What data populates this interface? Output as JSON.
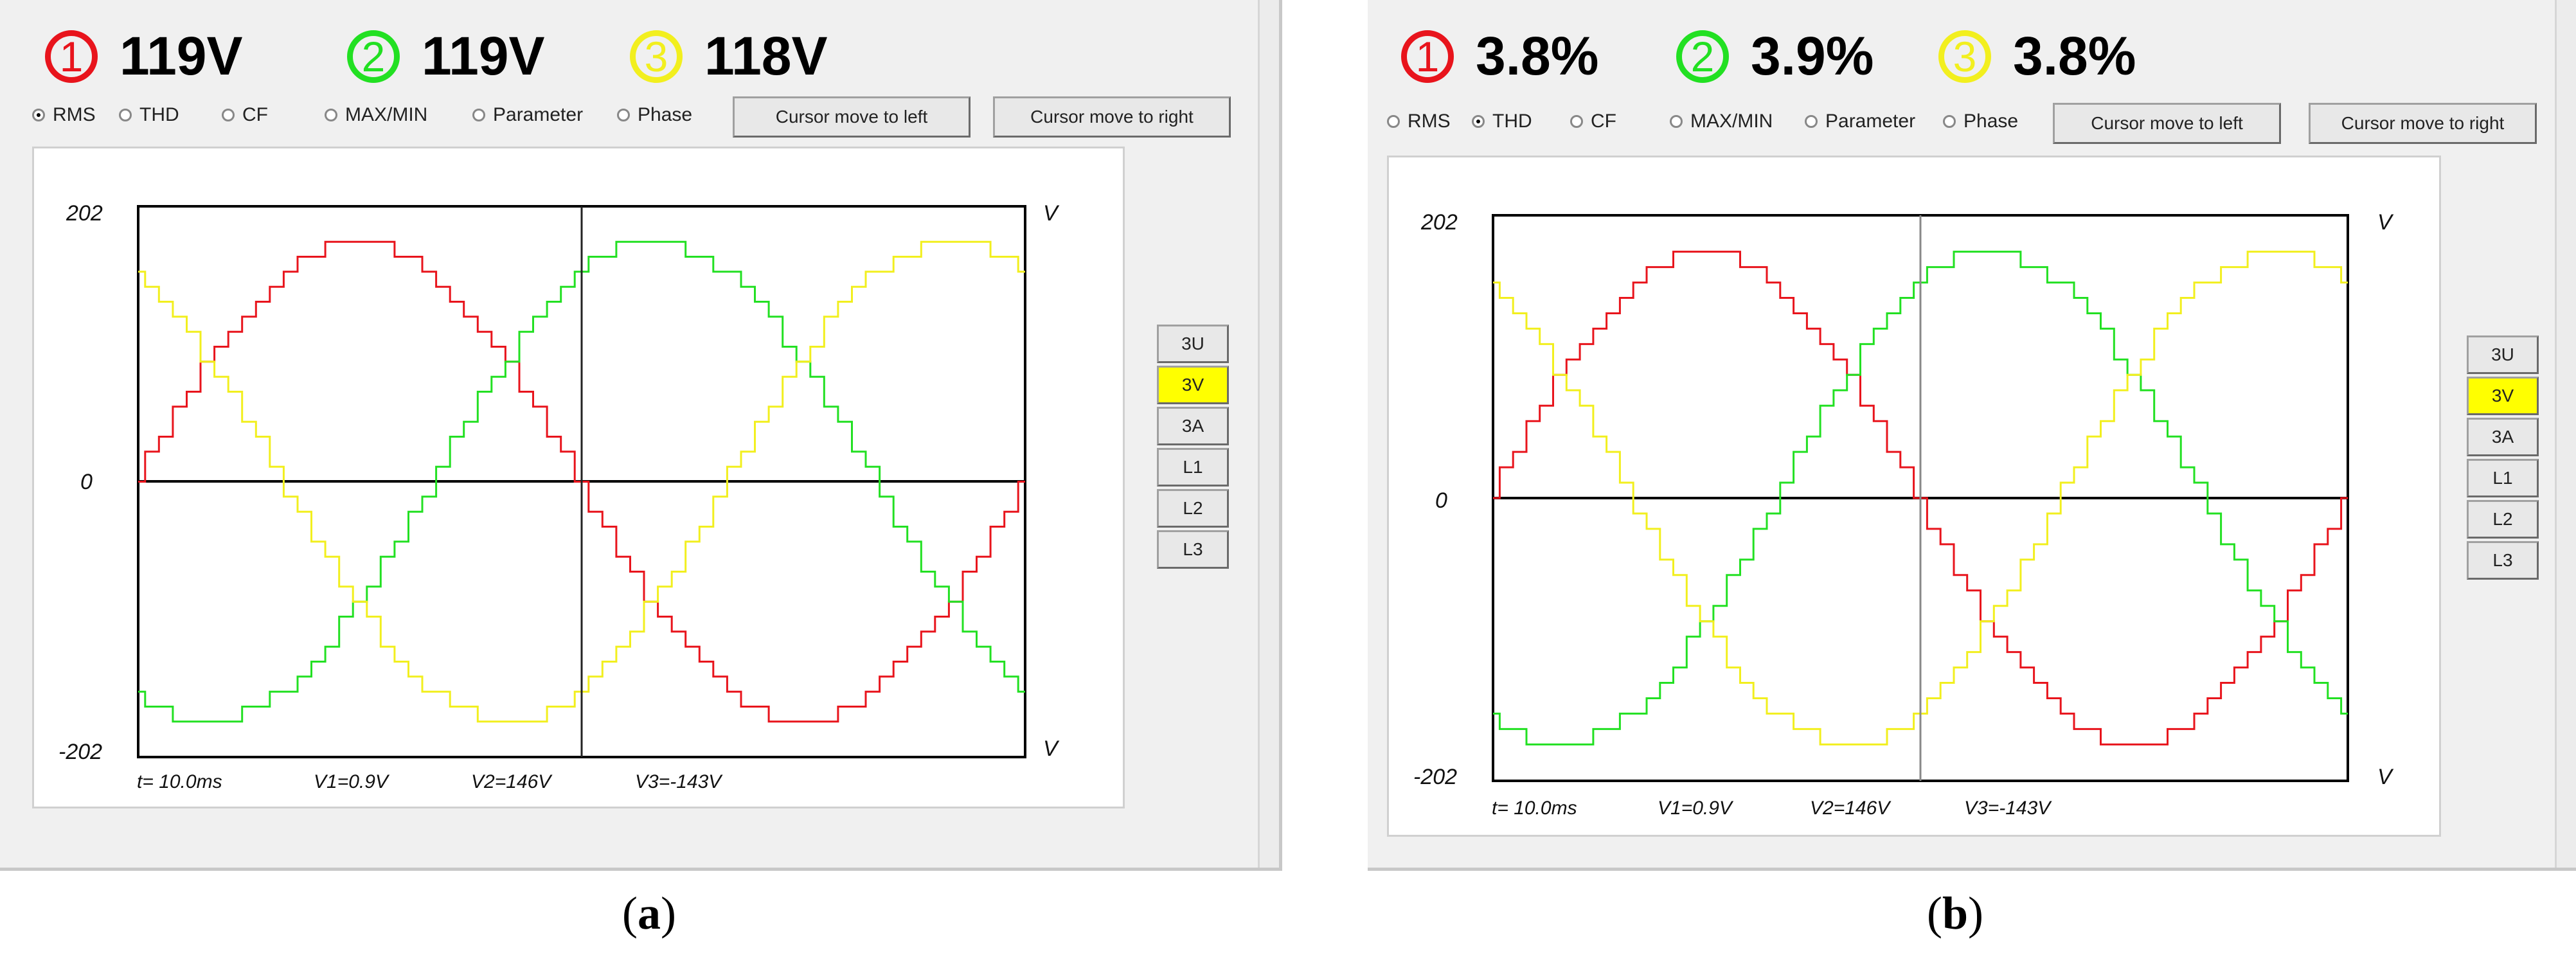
{
  "panels": [
    {
      "id": "a",
      "readouts": [
        {
          "num": "1",
          "value": "119V",
          "color": "#e8141c"
        },
        {
          "num": "2",
          "value": "119V",
          "color": "#22e022"
        },
        {
          "num": "3",
          "value": "118V",
          "color": "#f2ef1e"
        }
      ],
      "modes": [
        {
          "label": "RMS",
          "selected": true
        },
        {
          "label": "THD",
          "selected": false
        },
        {
          "label": "CF",
          "selected": false
        },
        {
          "label": "MAX/MIN",
          "selected": false
        },
        {
          "label": "Parameter",
          "selected": false
        },
        {
          "label": "Phase",
          "selected": false
        }
      ],
      "buttons": {
        "left": "Cursor move to left",
        "right": "Cursor move to right"
      },
      "plot": {
        "ytop": "202",
        "yzero": "0",
        "ybottom": "-202",
        "unit": "V",
        "status": {
          "t": "t= 10.0ms",
          "v1": "V1=0.9V",
          "v2": "V2=146V",
          "v3": "V3=-143V"
        }
      },
      "side_buttons": [
        "3U",
        "3V",
        "3A",
        "L1",
        "L2",
        "L3"
      ],
      "active_side": "3V",
      "caption": {
        "open": "(",
        "letter": "a",
        "close": ")"
      }
    },
    {
      "id": "b",
      "readouts": [
        {
          "num": "1",
          "value": "3.8%",
          "color": "#e8141c"
        },
        {
          "num": "2",
          "value": "3.9%",
          "color": "#22e022"
        },
        {
          "num": "3",
          "value": "3.8%",
          "color": "#f2ef1e"
        }
      ],
      "modes": [
        {
          "label": "RMS",
          "selected": false
        },
        {
          "label": "THD",
          "selected": true
        },
        {
          "label": "CF",
          "selected": false
        },
        {
          "label": "MAX/MIN",
          "selected": false
        },
        {
          "label": "Parameter",
          "selected": false
        },
        {
          "label": "Phase",
          "selected": false
        }
      ],
      "buttons": {
        "left": "Cursor move to left",
        "right": "Cursor move to right"
      },
      "plot": {
        "ytop": "202",
        "yzero": "0",
        "ybottom": "-202",
        "unit": "V",
        "status": {
          "t": "t= 10.0ms",
          "v1": "V1=0.9V",
          "v2": "V2=146V",
          "v3": "V3=-143V"
        }
      },
      "side_buttons": [
        "3U",
        "3V",
        "3A",
        "L1",
        "L2",
        "L3"
      ],
      "active_side": "3V",
      "caption": {
        "open": "(",
        "letter": "b",
        "close": ")"
      }
    }
  ],
  "chart_data": {
    "type": "line",
    "xlabel": "",
    "ylabel": "V",
    "ylim": [
      -202,
      202
    ],
    "x_unit": "cycle",
    "x_range": [
      0,
      1
    ],
    "cursor_x": 0.5,
    "series": [
      {
        "color": "#e8141c",
        "amplitude": 176,
        "phase_deg": 0
      },
      {
        "color": "#22e022",
        "amplitude": 176,
        "phase_deg": -120
      },
      {
        "color": "#f2ef1e",
        "amplitude": 176,
        "phase_deg": 120
      }
    ]
  }
}
